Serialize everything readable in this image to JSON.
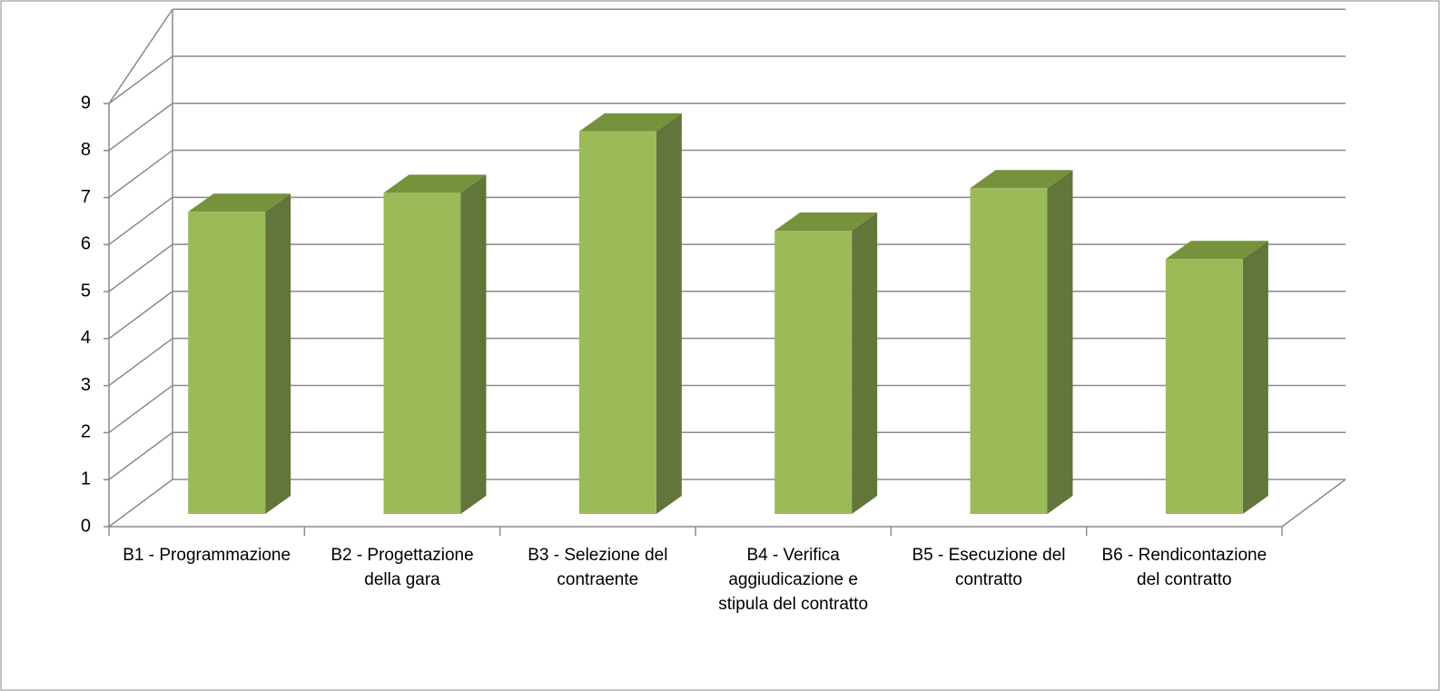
{
  "chart_data": {
    "type": "bar3d",
    "categories": [
      "B1 - Programmazione",
      "B2 - Progettazione della gara",
      "B3 - Selezione del contraente",
      "B4 - Verifica aggiudicazione e stipula del contratto",
      "B5 - Esecuzione del contratto",
      "B6 - Rendicontazione del contratto"
    ],
    "values": [
      6.4,
      6.8,
      8.1,
      6.0,
      6.9,
      5.4
    ],
    "color": "#9bbb59",
    "ylim": [
      0,
      9
    ],
    "yticks": [
      0,
      1,
      2,
      3,
      4,
      5,
      6,
      7,
      8,
      9
    ],
    "grid": true
  }
}
